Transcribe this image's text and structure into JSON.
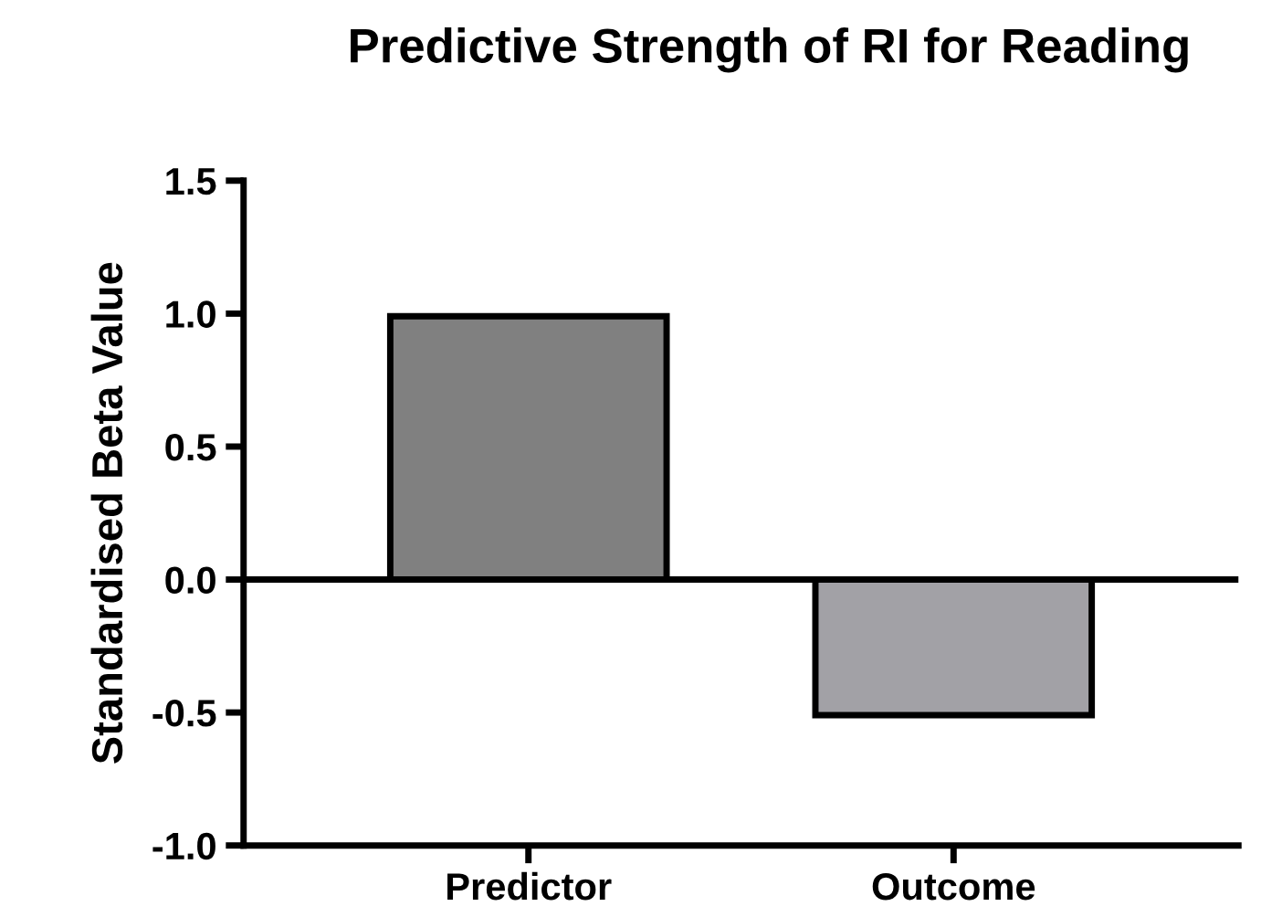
{
  "chart_data": {
    "type": "bar",
    "title": "Predictive Strength of RI for Reading",
    "ylabel": "Standardised Beta Value",
    "categories": [
      "Predictor",
      "Outcome"
    ],
    "values": [
      0.99,
      -0.51
    ],
    "colors": [
      "#808080",
      "#a2a1a6"
    ],
    "ylim": [
      -1.0,
      1.5
    ],
    "yticks": [
      {
        "value": -1.0,
        "label": "-1.0"
      },
      {
        "value": -0.5,
        "label": "-0.5"
      },
      {
        "value": 0.0,
        "label": "0.0"
      },
      {
        "value": 0.5,
        "label": "0.5"
      },
      {
        "value": 1.0,
        "label": "1.0"
      },
      {
        "value": 1.5,
        "label": "1.5"
      }
    ],
    "ref_lines": [
      {
        "axis": "y",
        "value": 0,
        "color": "#000000"
      }
    ],
    "grid": false
  }
}
